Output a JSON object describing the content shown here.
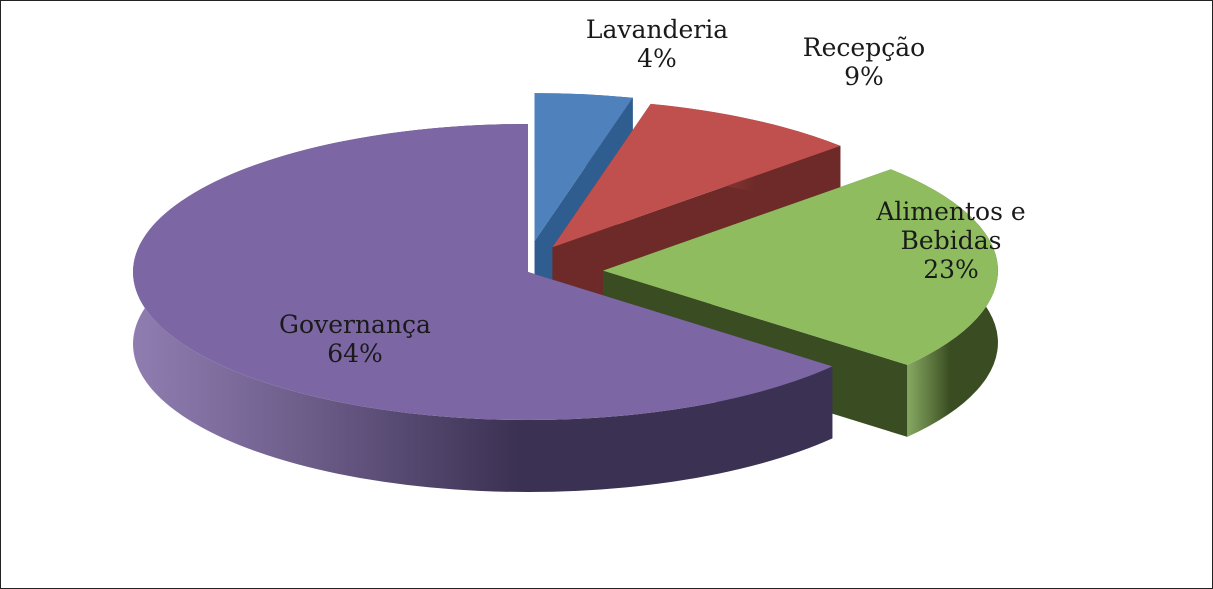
{
  "chart_data": {
    "type": "pie",
    "style": "3d-exploded",
    "title": "",
    "legend": "none",
    "slices": [
      {
        "name": "Lavanderia",
        "value": 4,
        "value_label": "4%",
        "label_lines": [
          "Lavanderia"
        ],
        "color": "#4f81bd",
        "side_color": "#2f5d8f"
      },
      {
        "name": "Recepção",
        "value": 9,
        "value_label": "9%",
        "label_lines": [
          "Recepção"
        ],
        "color": "#c0504d",
        "side_color": "#6e2a29"
      },
      {
        "name": "Alimentos e Bebidas",
        "value": 23,
        "value_label": "23%",
        "label_lines": [
          "Alimentos e",
          "Bebidas"
        ],
        "color": "#8fbc5f",
        "side_color": "#3a4d22"
      },
      {
        "name": "Governança",
        "value": 64,
        "value_label": "64%",
        "label_lines": [
          "Governança"
        ],
        "color": "#7c66a3",
        "side_color": "#3b3152"
      }
    ]
  }
}
